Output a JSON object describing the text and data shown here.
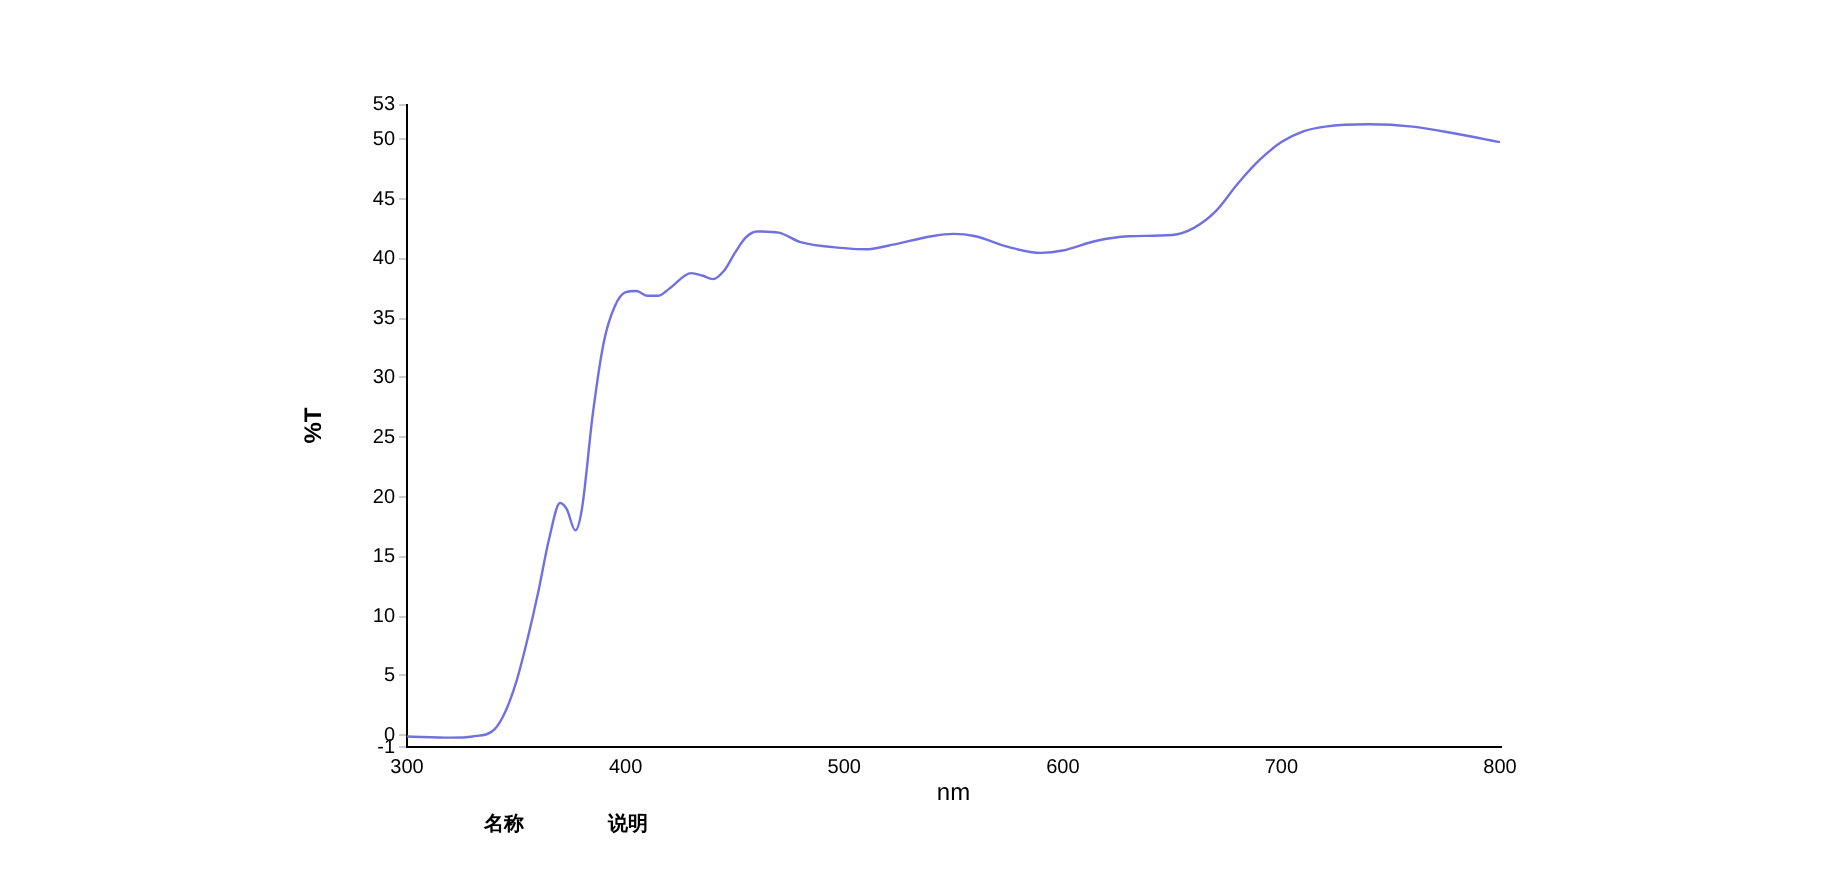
{
  "chart_data": {
    "type": "line",
    "xlabel": "nm",
    "ylabel": "%T",
    "annotations": [
      "名称",
      "说明"
    ],
    "xlim": [
      300,
      800
    ],
    "xticks": [
      300,
      400,
      500,
      600,
      700,
      800
    ],
    "ylim": [
      -1,
      53
    ],
    "yticks": [
      -1,
      0,
      5,
      10,
      15,
      20,
      25,
      30,
      35,
      40,
      45,
      50,
      53
    ],
    "grid": false,
    "legend": false,
    "marker": "none",
    "line_style": "solid",
    "x": [
      300,
      320,
      330,
      340,
      345,
      350,
      355,
      360,
      365,
      370,
      373,
      377,
      380,
      385,
      390,
      395,
      400,
      405,
      410,
      415,
      420,
      430,
      435,
      440,
      445,
      450,
      455,
      460,
      470,
      480,
      500,
      510,
      520,
      540,
      550,
      560,
      575,
      590,
      600,
      615,
      630,
      650,
      660,
      670,
      680,
      690,
      700,
      710,
      720,
      740,
      760,
      780,
      800
    ],
    "series": [
      {
        "color": "#7070e0",
        "values": [
          -0.1,
          -0.2,
          -0.1,
          0.5,
          2,
          4.5,
          8,
          12,
          16.5,
          19.5,
          19,
          17.2,
          19,
          27,
          33,
          36,
          37.2,
          37.3,
          36.9,
          36.9,
          37.5,
          38.8,
          38.6,
          38.3,
          39,
          40.5,
          41.8,
          42.3,
          42.2,
          41.4,
          40.9,
          40.8,
          41.1,
          41.9,
          42.1,
          41.9,
          41,
          40.5,
          40.7,
          41.5,
          41.9,
          42,
          42.6,
          44,
          46.3,
          48.3,
          49.8,
          50.7,
          51.1,
          51.3,
          51.1,
          50.5,
          49.8
        ]
      }
    ]
  }
}
